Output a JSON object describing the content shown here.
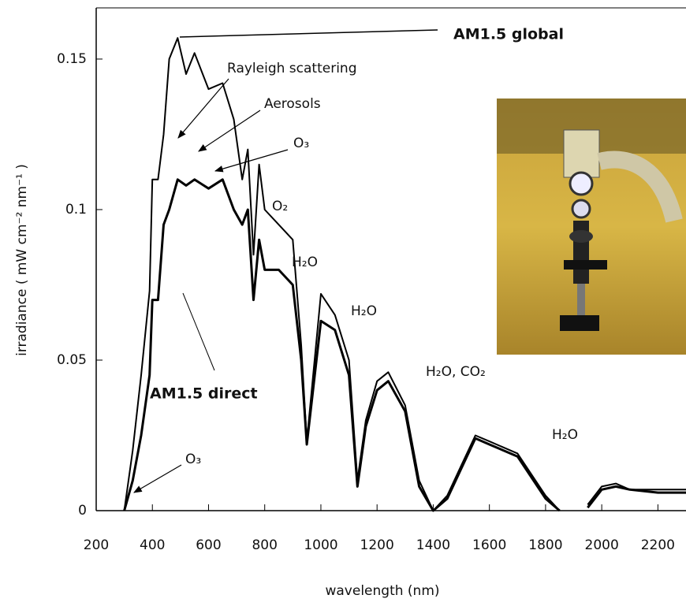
{
  "chart_data": {
    "type": "line",
    "xlabel": "wavelength (nm)",
    "ylabel": "irradiance ( mW cm⁻² nm⁻¹ )",
    "x": [
      300,
      330,
      360,
      390,
      400,
      420,
      440,
      460,
      490,
      520,
      550,
      600,
      650,
      690,
      720,
      740,
      760,
      780,
      800,
      850,
      900,
      930,
      950,
      1000,
      1050,
      1100,
      1130,
      1160,
      1200,
      1240,
      1300,
      1350,
      1400,
      1450,
      1500,
      1550,
      1600,
      1700,
      1800,
      1850,
      1900,
      1950,
      2000,
      2050,
      2100,
      2200,
      2300
    ],
    "series": [
      {
        "name": "AM1.5 global",
        "color": "#000000",
        "values": [
          0,
          0.02,
          0.045,
          0.073,
          0.11,
          0.11,
          0.125,
          0.15,
          0.157,
          0.145,
          0.152,
          0.14,
          0.142,
          0.13,
          0.11,
          0.12,
          0.085,
          0.115,
          0.1,
          0.095,
          0.09,
          0.055,
          0.023,
          0.072,
          0.065,
          0.05,
          0.01,
          0.03,
          0.043,
          0.046,
          0.035,
          0.01,
          0,
          0.005,
          0.015,
          0.025,
          0.023,
          0.019,
          0.005,
          0,
          null,
          0.002,
          0.008,
          0.009,
          0.007,
          0.007,
          0.007
        ]
      },
      {
        "name": "AM1.5 direct",
        "color": "#000000",
        "values": [
          0,
          0.01,
          0.025,
          0.045,
          0.07,
          0.07,
          0.095,
          0.1,
          0.11,
          0.108,
          0.11,
          0.107,
          0.11,
          0.1,
          0.095,
          0.1,
          0.07,
          0.09,
          0.08,
          0.08,
          0.075,
          0.05,
          0.022,
          0.063,
          0.06,
          0.045,
          0.008,
          0.028,
          0.04,
          0.043,
          0.033,
          0.008,
          0,
          0.004,
          0.014,
          0.024,
          0.022,
          0.018,
          0.004,
          0,
          null,
          0.001,
          0.007,
          0.008,
          0.007,
          0.006,
          0.006
        ]
      }
    ],
    "annotations": [
      "Rayleigh scattering",
      "Aerosols",
      "O₃",
      "O₂",
      "H₂O",
      "H₂O",
      "H₂O, CO₂",
      "H₂O",
      "O₃"
    ],
    "xlim": [
      200,
      2300
    ],
    "xticks": [
      200,
      400,
      600,
      800,
      1000,
      1200,
      1400,
      1600,
      1800,
      2000,
      2200
    ],
    "ylim": [
      0,
      0.167
    ],
    "yticks": [
      0,
      0.05,
      0.1,
      0.15
    ]
  }
}
